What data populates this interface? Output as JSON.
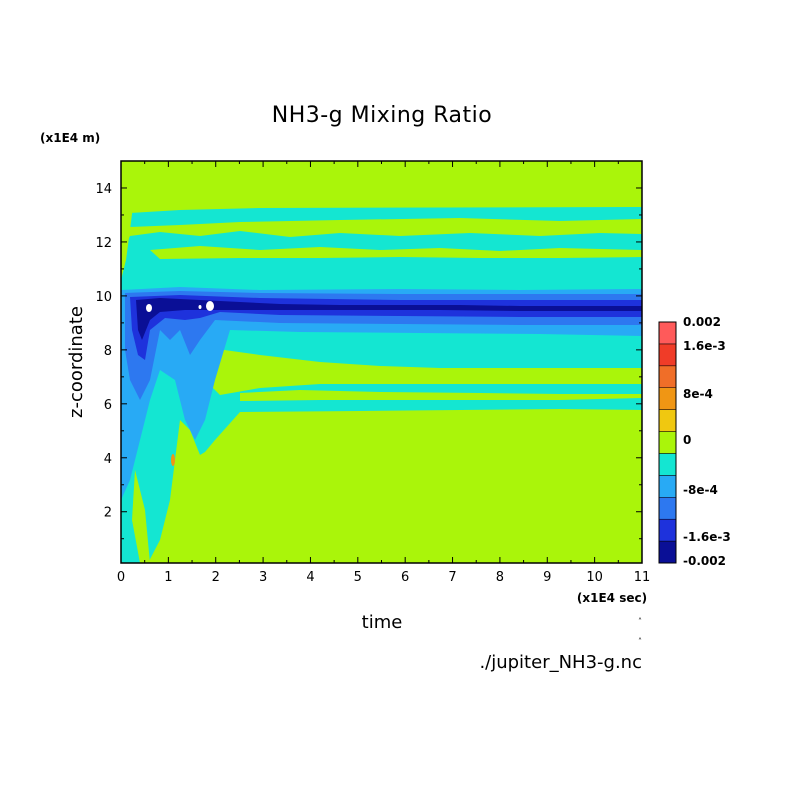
{
  "chart_data": {
    "type": "heatmap",
    "title": "NH3-g Mixing Ratio",
    "xlabel": "time",
    "ylabel": "z-coordinate",
    "x_unit": "(x1E4 sec)",
    "y_unit": "(x1E4 m)",
    "xlim": [
      0,
      11
    ],
    "ylim": [
      0.1,
      15
    ],
    "x_ticks": [
      "0",
      "1",
      "2",
      "3",
      "4",
      "5",
      "6",
      "7",
      "8",
      "9",
      "10",
      "11"
    ],
    "y_ticks": [
      "2",
      "4",
      "6",
      "8",
      "10",
      "12",
      "14"
    ],
    "colorbar": {
      "range": [
        -0.002,
        0.002
      ],
      "levels": [
        -0.002,
        -0.0016,
        -0.0012,
        -0.0008,
        -0.0004,
        0,
        0.0004,
        0.0008,
        0.0012,
        0.0016,
        0.002
      ],
      "colors": [
        "#0a0f96",
        "#1e32dc",
        "#2d78f0",
        "#28aaf5",
        "#14e6d2",
        "#aaf50a",
        "#f0c810",
        "#f09614",
        "#f06e28",
        "#f03c28",
        "#ff5a5a"
      ],
      "tick_labels": [
        "0.002",
        "1.6e-3",
        "8e-4",
        "0",
        "-8e-4",
        "-1.6e-3",
        "-0.002"
      ]
    },
    "source_file": "./jupiter_NH3-g.nc"
  }
}
